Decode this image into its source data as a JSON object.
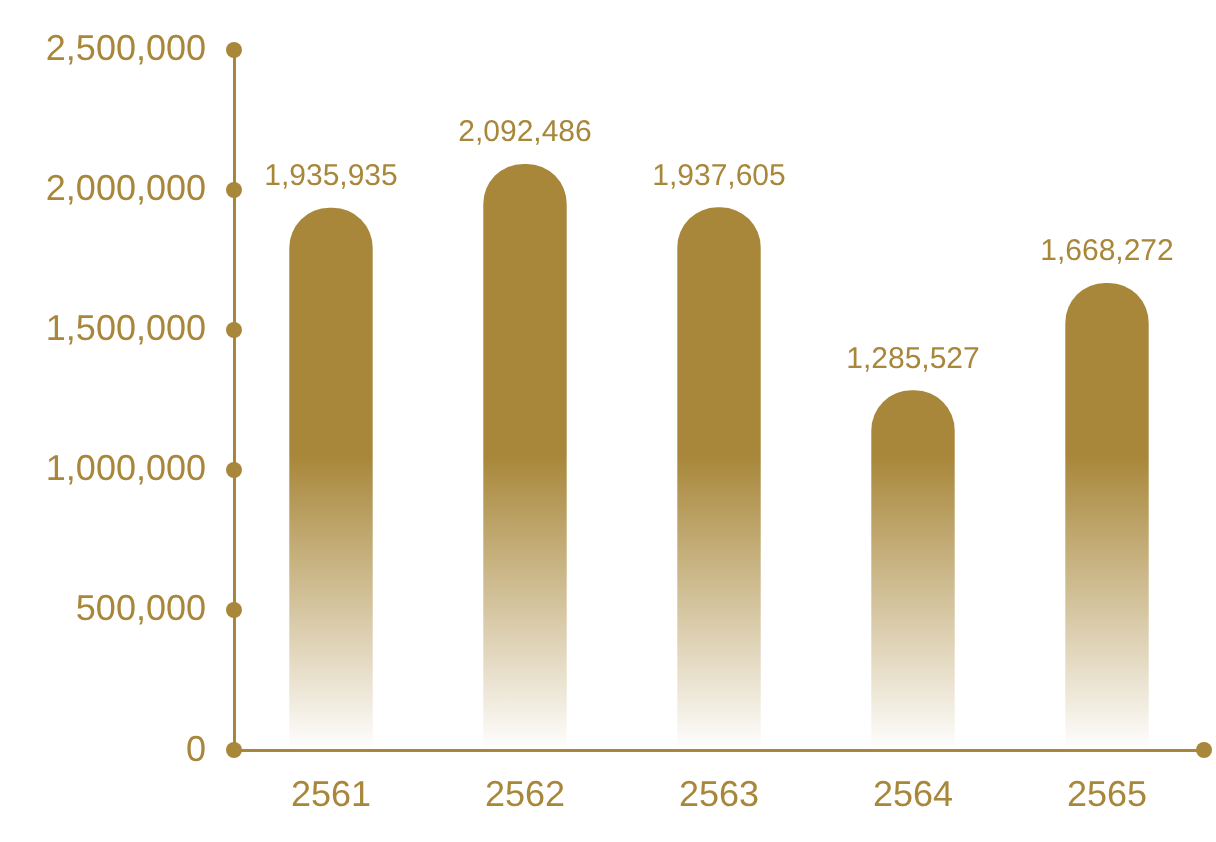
{
  "chart_data": {
    "type": "bar",
    "categories": [
      "2561",
      "2562",
      "2563",
      "2564",
      "2565"
    ],
    "values": [
      1935935,
      2092486,
      1937605,
      1285527,
      1668272
    ],
    "color": "#a8873a",
    "ylim": [
      0,
      2500000
    ],
    "yticks": [
      {
        "value": 0,
        "label": "0"
      },
      {
        "value": 500000,
        "label": "500,000"
      },
      {
        "value": 1000000,
        "label": "1,000,000"
      },
      {
        "value": 1500000,
        "label": "1,500,000"
      },
      {
        "value": 2000000,
        "label": "2,000,000"
      },
      {
        "value": 2500000,
        "label": "2,500,000"
      }
    ],
    "value_labels": [
      "1,935,935",
      "2,092,486",
      "1,937,605",
      "1,285,527",
      "1,668,272"
    ],
    "grid": false,
    "legend": false
  }
}
